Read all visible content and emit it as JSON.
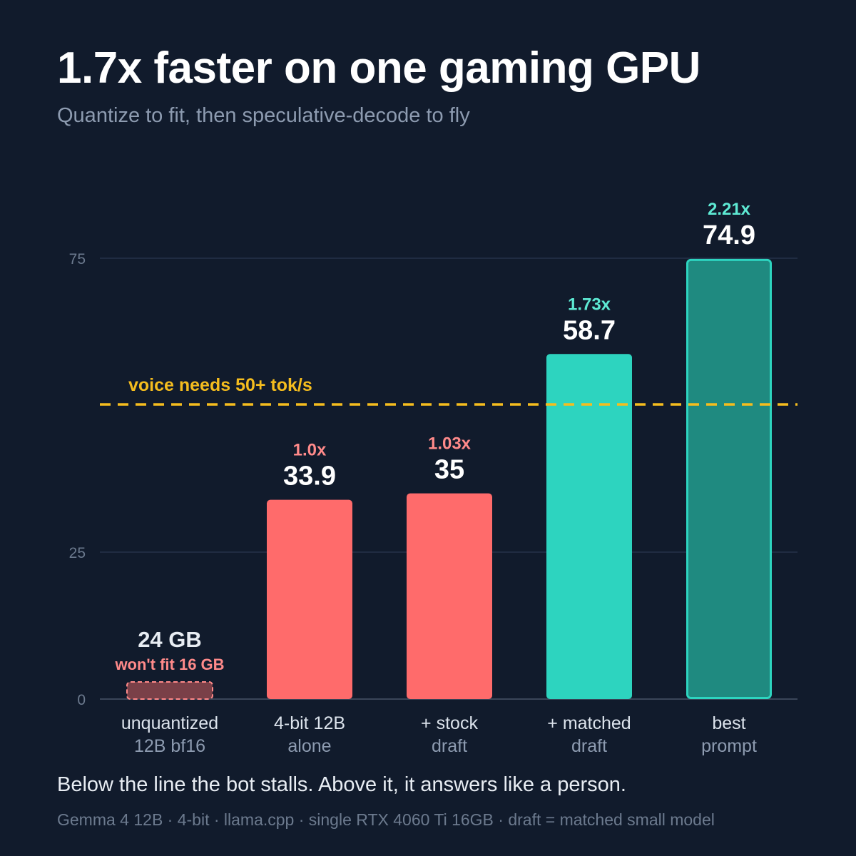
{
  "title": "1.7x faster on one gaming GPU",
  "subtitle": "Quantize to fit, then speculative-decode to fly",
  "note": "Below the line the bot stalls. Above it, it answers like a person.",
  "footnote": "Gemma 4 12B · 4-bit · llama.cpp · single RTX 4060 Ti 16GB · draft = matched small model",
  "chart_data": {
    "type": "bar",
    "categories": [
      [
        "unquantized",
        "12B bf16"
      ],
      [
        "4-bit 12B",
        "alone"
      ],
      [
        "+ stock",
        "draft"
      ],
      [
        "+ matched",
        "draft"
      ],
      [
        "best",
        "prompt"
      ]
    ],
    "values": [
      null,
      33.9,
      35,
      58.7,
      74.9
    ],
    "value_labels": [
      "24 GB",
      "33.9",
      "35",
      "58.7",
      "74.9"
    ],
    "speedup_labels": [
      "won't fit 16 GB",
      "1.0x",
      "1.03x",
      "1.73x",
      "2.21x"
    ],
    "bar_colors": [
      "#7a4048",
      "#ff6b6b",
      "#ff6b6b",
      "#2dd4bf",
      "#1f8a80"
    ],
    "speedup_colors": [
      "#ff8a8a",
      "#ff8a8a",
      "#ff8a8a",
      "#5eead4",
      "#5eead4"
    ],
    "y_ticks": [
      0,
      25,
      75
    ],
    "ylim": [
      0,
      75
    ],
    "grid": true,
    "threshold": {
      "value": 50,
      "label": "voice needs 50+ tok/s",
      "color": "#f5bd1e"
    }
  }
}
